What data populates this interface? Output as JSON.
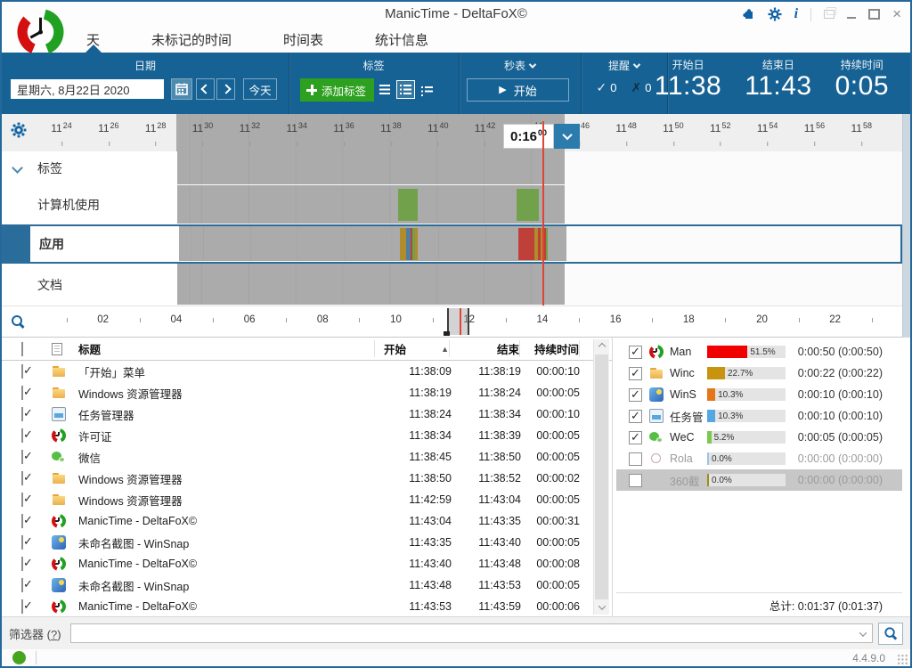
{
  "window": {
    "title": "ManicTime - DeltaFoX©",
    "version": "4.4.9.0"
  },
  "tabs": [
    {
      "label": "天",
      "active": true
    },
    {
      "label": "未标记的时间"
    },
    {
      "label": "时间表"
    },
    {
      "label": "统计信息"
    }
  ],
  "toolbar": {
    "date": {
      "section_title": "日期",
      "value": "星期六, 8月22日 2020",
      "today": "今天"
    },
    "tags": {
      "section_title": "标签",
      "add_button": "添加标签"
    },
    "stopwatch": {
      "section_title": "秒表",
      "start_button": "开始"
    },
    "reminder": {
      "section_title": "提醒",
      "ok_count": "0",
      "missed_count": "0"
    },
    "summary": {
      "start_label": "开始日",
      "start_value": "11:38",
      "end_label": "结束日",
      "end_value": "11:43",
      "duration_label": "持续时间",
      "duration_value": "0:05"
    }
  },
  "timeline": {
    "scale_labels": [
      {
        "h": "11",
        "m": "24"
      },
      {
        "h": "11",
        "m": "26"
      },
      {
        "h": "11",
        "m": "28"
      },
      {
        "h": "11",
        "m": "30"
      },
      {
        "h": "11",
        "m": "32"
      },
      {
        "h": "11",
        "m": "34"
      },
      {
        "h": "11",
        "m": "36"
      },
      {
        "h": "11",
        "m": "38"
      },
      {
        "h": "11",
        "m": "40"
      },
      {
        "h": "11",
        "m": "42"
      },
      {
        "h": "11",
        "m": "44"
      },
      {
        "h": "11",
        "m": "46"
      },
      {
        "h": "11",
        "m": "48"
      },
      {
        "h": "11",
        "m": "50"
      },
      {
        "h": "11",
        "m": "52"
      },
      {
        "h": "11",
        "m": "54"
      },
      {
        "h": "11",
        "m": "56"
      },
      {
        "h": "11",
        "m": "58"
      }
    ],
    "tooltip": {
      "duration": "0:16",
      "seconds": "00"
    },
    "row_labels": {
      "tags": "标签",
      "computer": "计算机使用",
      "apps": "应用",
      "docs": "文档"
    },
    "selection": {
      "start_min": 28.9,
      "end_min": 45.4
    },
    "now_min": 44.45,
    "computer_usage_blocks": [
      {
        "s": 38.31,
        "e": 39.14
      },
      {
        "s": 43.35,
        "e": 44.3
      }
    ],
    "app_blocks": [
      {
        "s": 38.31,
        "e": 38.57,
        "color": "#b08c2a"
      },
      {
        "s": 38.57,
        "e": 38.76,
        "color": "#4e7f9e"
      },
      {
        "s": 38.76,
        "e": 38.84,
        "color": "#bf4038"
      },
      {
        "s": 38.84,
        "e": 38.95,
        "color": "#6fa24a"
      },
      {
        "s": 38.95,
        "e": 39.07,
        "color": "#b08c2a"
      },
      {
        "s": 43.34,
        "e": 44.02,
        "color": "#bf4038"
      },
      {
        "s": 44.02,
        "e": 44.17,
        "color": "#b08c2a"
      },
      {
        "s": 44.17,
        "e": 44.29,
        "color": "#bf4038"
      },
      {
        "s": 44.29,
        "e": 44.4,
        "color": "#b08c2a"
      },
      {
        "s": 44.4,
        "e": 44.51,
        "color": "#bf4038"
      },
      {
        "s": 44.51,
        "e": 44.59,
        "color": "#6fa24a"
      }
    ]
  },
  "overview": {
    "hour_labels": [
      {
        "label": "02",
        "h": 2
      },
      {
        "label": "04",
        "h": 4
      },
      {
        "label": "06",
        "h": 6
      },
      {
        "label": "08",
        "h": 8
      },
      {
        "label": "10",
        "h": 10
      },
      {
        "label": "12",
        "h": 12
      },
      {
        "label": "14",
        "h": 14
      },
      {
        "label": "16",
        "h": 16
      },
      {
        "label": "18",
        "h": 18
      },
      {
        "label": "20",
        "h": 20
      },
      {
        "label": "22",
        "h": 22
      }
    ],
    "selection": {
      "start_h": 11.4,
      "end_h": 12.0
    },
    "now_h": 11.73
  },
  "table": {
    "headers": {
      "title": "标题",
      "start": "开始",
      "end": "结束",
      "duration": "持续时间"
    },
    "rows": [
      {
        "checked": true,
        "icon": "startmenu",
        "title": "「开始」菜单",
        "start": "11:38:09",
        "end": "11:38:19",
        "duration": "00:00:10"
      },
      {
        "checked": true,
        "icon": "folder",
        "title": "Windows 资源管理器",
        "start": "11:38:19",
        "end": "11:38:24",
        "duration": "00:00:05"
      },
      {
        "checked": true,
        "icon": "taskmgr",
        "title": "任务管理器",
        "start": "11:38:24",
        "end": "11:38:34",
        "duration": "00:00:10"
      },
      {
        "checked": true,
        "icon": "manictime",
        "title": "许可证",
        "start": "11:38:34",
        "end": "11:38:39",
        "duration": "00:00:05"
      },
      {
        "checked": true,
        "icon": "wechat",
        "title": "微信",
        "start": "11:38:45",
        "end": "11:38:50",
        "duration": "00:00:05"
      },
      {
        "checked": true,
        "icon": "folder",
        "title": "Windows 资源管理器",
        "start": "11:38:50",
        "end": "11:38:52",
        "duration": "00:00:02"
      },
      {
        "checked": true,
        "icon": "folder",
        "title": "Windows 资源管理器",
        "start": "11:42:59",
        "end": "11:43:04",
        "duration": "00:00:05"
      },
      {
        "checked": true,
        "icon": "manictime",
        "title": "ManicTime - DeltaFoX©",
        "start": "11:43:04",
        "end": "11:43:35",
        "duration": "00:00:31"
      },
      {
        "checked": true,
        "icon": "winsnap",
        "title": "未命名截图 - WinSnap",
        "start": "11:43:35",
        "end": "11:43:40",
        "duration": "00:00:05"
      },
      {
        "checked": true,
        "icon": "manictime",
        "title": "ManicTime - DeltaFoX©",
        "start": "11:43:40",
        "end": "11:43:48",
        "duration": "00:00:08"
      },
      {
        "checked": true,
        "icon": "winsnap",
        "title": "未命名截图 - WinSnap",
        "start": "11:43:48",
        "end": "11:43:53",
        "duration": "00:00:05"
      },
      {
        "checked": true,
        "icon": "manictime",
        "title": "ManicTime - DeltaFoX©",
        "start": "11:43:53",
        "end": "11:43:59",
        "duration": "00:00:06"
      }
    ]
  },
  "panel": {
    "rows": [
      {
        "checked": true,
        "icon": "manictime",
        "name": "Man",
        "percent": 51.5,
        "percent_label": "51.5%",
        "bar_color": "#f00000",
        "time": "0:00:50 (0:00:50)"
      },
      {
        "checked": true,
        "icon": "folder",
        "name": "Winc",
        "percent": 22.7,
        "percent_label": "22.7%",
        "bar_color": "#c8940f",
        "time": "0:00:22 (0:00:22)"
      },
      {
        "checked": true,
        "icon": "winsnap",
        "name": "WinS",
        "percent": 10.3,
        "percent_label": "10.3%",
        "bar_color": "#e57617",
        "time": "0:00:10 (0:00:10)"
      },
      {
        "checked": true,
        "icon": "taskmgr",
        "name": "任务管",
        "percent": 10.3,
        "percent_label": "10.3%",
        "bar_color": "#54a7e0",
        "time": "0:00:10 (0:00:10)"
      },
      {
        "checked": true,
        "icon": "wechat",
        "name": "WeC",
        "percent": 5.2,
        "percent_label": "5.2%",
        "bar_color": "#7cc84f",
        "time": "0:00:05 (0:00:05)"
      },
      {
        "checked": false,
        "icon": "rolan",
        "name": "Rola",
        "percent": 0.0,
        "percent_label": "0.0%",
        "bar_color": "#9dc3e6",
        "time": "0:00:00 (0:00:00)"
      },
      {
        "checked": false,
        "selected": true,
        "icon": "p360",
        "name": "360截",
        "percent": 0.0,
        "percent_label": "0.0%",
        "bar_color": "#a08c1c",
        "time": "0:00:00 (0:00:00)"
      }
    ],
    "total": "总计: 0:01:37 (0:01:37)"
  },
  "filter": {
    "label": "筛选器",
    "help_open": "(",
    "help": "?",
    "help_close": ")"
  }
}
